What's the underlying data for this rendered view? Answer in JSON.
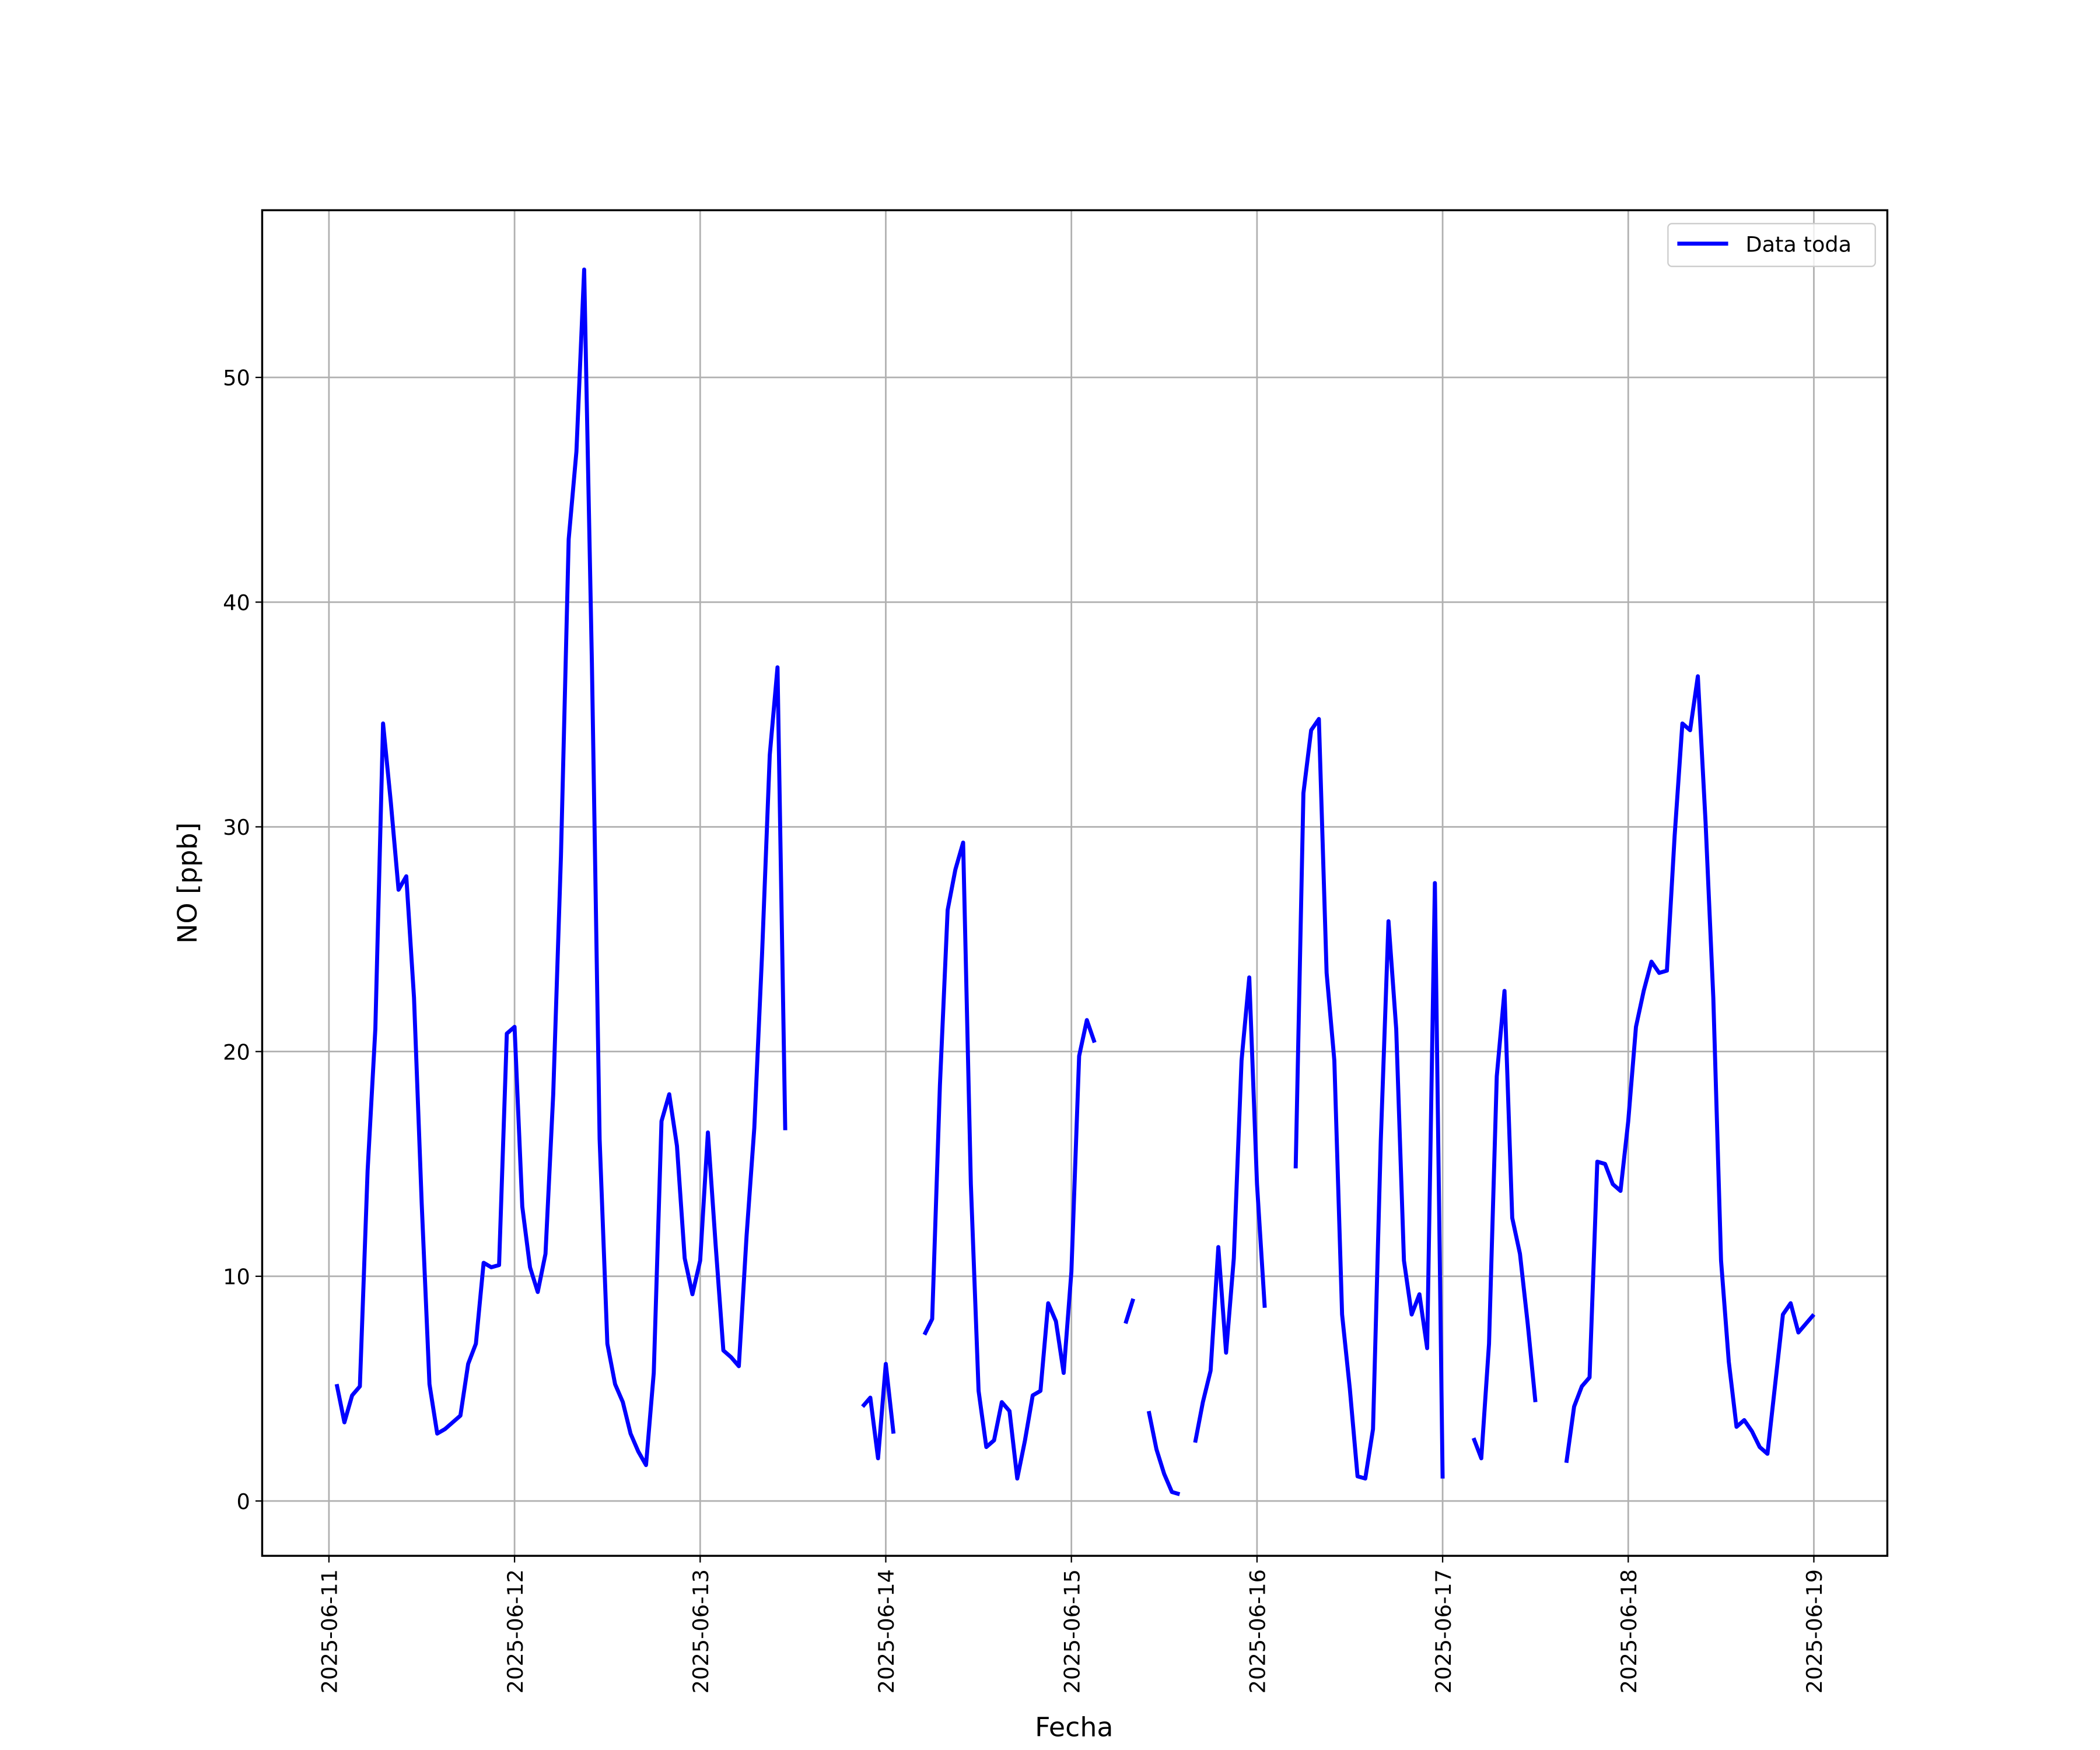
{
  "chart_data": {
    "type": "line",
    "xlabel": "Fecha",
    "ylabel": "NO [ppb]",
    "xlim": [
      "2025-06-10T15:22",
      "2025-06-19T09:30"
    ],
    "xticks": [
      "2025-06-11",
      "2025-06-12",
      "2025-06-13",
      "2025-06-14",
      "2025-06-15",
      "2025-06-16",
      "2025-06-17",
      "2025-06-18",
      "2025-06-19"
    ],
    "ylim": [
      -2.44,
      57.44
    ],
    "yticks": [
      0,
      10,
      20,
      30,
      40,
      50
    ],
    "grid": true,
    "legend": "upper right",
    "x": [
      "2025-06-11T01:00",
      "2025-06-11T02:00",
      "2025-06-11T03:00",
      "2025-06-11T04:00",
      "2025-06-11T05:00",
      "2025-06-11T06:00",
      "2025-06-11T07:00",
      "2025-06-11T08:00",
      "2025-06-11T09:00",
      "2025-06-11T10:00",
      "2025-06-11T11:00",
      "2025-06-11T12:00",
      "2025-06-11T13:00",
      "2025-06-11T14:00",
      "2025-06-11T15:00",
      "2025-06-11T16:00",
      "2025-06-11T17:00",
      "2025-06-11T18:00",
      "2025-06-11T19:00",
      "2025-06-11T20:00",
      "2025-06-11T21:00",
      "2025-06-11T22:00",
      "2025-06-11T23:00",
      "2025-06-12T00:00",
      "2025-06-12T01:00",
      "2025-06-12T02:00",
      "2025-06-12T03:00",
      "2025-06-12T04:00",
      "2025-06-12T05:00",
      "2025-06-12T06:00",
      "2025-06-12T07:00",
      "2025-06-12T08:00",
      "2025-06-12T09:00",
      "2025-06-12T10:00",
      "2025-06-12T11:00",
      "2025-06-12T12:00",
      "2025-06-12T13:00",
      "2025-06-12T14:00",
      "2025-06-12T15:00",
      "2025-06-12T16:00",
      "2025-06-12T17:00",
      "2025-06-12T18:00",
      "2025-06-12T19:00",
      "2025-06-12T20:00",
      "2025-06-12T21:00",
      "2025-06-12T22:00",
      "2025-06-12T23:00",
      "2025-06-13T00:00",
      "2025-06-13T01:00",
      "2025-06-13T02:00",
      "2025-06-13T03:00",
      "2025-06-13T04:00",
      "2025-06-13T05:00",
      "2025-06-13T06:00",
      "2025-06-13T07:00",
      "2025-06-13T08:00",
      "2025-06-13T09:00",
      "2025-06-13T10:00",
      "2025-06-13T11:00",
      "2025-06-13T12:00",
      "2025-06-13T21:00",
      "2025-06-13T22:00",
      "2025-06-13T23:00",
      "2025-06-14T00:00",
      "2025-06-14T01:00",
      "2025-06-14T02:00",
      "2025-06-14T05:00",
      "2025-06-14T06:00",
      "2025-06-14T07:00",
      "2025-06-14T08:00",
      "2025-06-14T09:00",
      "2025-06-14T10:00",
      "2025-06-14T11:00",
      "2025-06-14T12:00",
      "2025-06-14T13:00",
      "2025-06-14T14:00",
      "2025-06-14T15:00",
      "2025-06-14T16:00",
      "2025-06-14T17:00",
      "2025-06-14T18:00",
      "2025-06-14T19:00",
      "2025-06-14T20:00",
      "2025-06-14T21:00",
      "2025-06-14T22:00",
      "2025-06-14T23:00",
      "2025-06-15T00:00",
      "2025-06-15T01:00",
      "2025-06-15T02:00",
      "2025-06-15T03:00",
      "2025-06-15T04:00",
      "2025-06-15T07:00",
      "2025-06-15T08:00",
      "2025-06-15T09:00",
      "2025-06-15T10:00",
      "2025-06-15T11:00",
      "2025-06-15T12:00",
      "2025-06-15T13:00",
      "2025-06-15T14:00",
      "2025-06-15T15:00",
      "2025-06-15T16:00",
      "2025-06-15T17:00",
      "2025-06-15T18:00",
      "2025-06-15T19:00",
      "2025-06-15T20:00",
      "2025-06-15T21:00",
      "2025-06-15T22:00",
      "2025-06-15T23:00",
      "2025-06-16T00:00",
      "2025-06-16T01:00",
      "2025-06-16T02:00",
      "2025-06-16T05:00",
      "2025-06-16T06:00",
      "2025-06-16T07:00",
      "2025-06-16T08:00",
      "2025-06-16T09:00",
      "2025-06-16T10:00",
      "2025-06-16T11:00",
      "2025-06-16T12:00",
      "2025-06-16T13:00",
      "2025-06-16T14:00",
      "2025-06-16T15:00",
      "2025-06-16T16:00",
      "2025-06-16T17:00",
      "2025-06-16T18:00",
      "2025-06-16T19:00",
      "2025-06-16T20:00",
      "2025-06-16T21:00",
      "2025-06-16T22:00",
      "2025-06-16T23:00",
      "2025-06-17T00:00",
      "2025-06-17T01:00",
      "2025-06-17T04:00",
      "2025-06-17T05:00",
      "2025-06-17T06:00",
      "2025-06-17T07:00",
      "2025-06-17T08:00",
      "2025-06-17T09:00",
      "2025-06-17T10:00",
      "2025-06-17T11:00",
      "2025-06-17T12:00",
      "2025-06-17T13:00",
      "2025-06-17T16:00",
      "2025-06-17T17:00",
      "2025-06-17T18:00",
      "2025-06-17T19:00",
      "2025-06-17T20:00",
      "2025-06-17T21:00",
      "2025-06-17T22:00",
      "2025-06-17T23:00",
      "2025-06-18T00:00",
      "2025-06-18T01:00",
      "2025-06-18T02:00",
      "2025-06-18T03:00",
      "2025-06-18T04:00",
      "2025-06-18T05:00",
      "2025-06-18T06:00",
      "2025-06-18T07:00",
      "2025-06-18T08:00",
      "2025-06-18T09:00",
      "2025-06-18T10:00",
      "2025-06-18T11:00",
      "2025-06-18T12:00",
      "2025-06-18T13:00",
      "2025-06-18T14:00",
      "2025-06-18T15:00",
      "2025-06-18T16:00",
      "2025-06-18T17:00",
      "2025-06-18T18:00",
      "2025-06-18T19:00",
      "2025-06-18T20:00",
      "2025-06-18T21:00",
      "2025-06-18T22:00",
      "2025-06-18T23:00",
      "2025-06-19T00:00"
    ],
    "series": [
      {
        "name": "Data toda",
        "color": "#0000ff",
        "values": [
          5.2,
          3.5,
          4.7,
          5.1,
          14.7,
          21.0,
          34.6,
          31.1,
          27.2,
          27.8,
          22.4,
          13.2,
          5.2,
          3.0,
          3.2,
          3.5,
          3.8,
          6.1,
          7.0,
          10.6,
          10.4,
          10.5,
          20.8,
          21.1,
          13.1,
          10.4,
          9.3,
          11.0,
          18.1,
          28.7,
          42.8,
          46.7,
          54.8,
          37.3,
          16.1,
          7.0,
          5.2,
          4.4,
          3.0,
          2.2,
          1.6,
          5.7,
          16.9,
          18.1,
          15.8,
          10.8,
          9.2,
          10.7,
          16.4,
          11.4,
          6.7,
          6.4,
          6.0,
          11.8,
          16.6,
          24.3,
          33.2,
          37.1,
          16.5,
          null,
          4.2,
          4.6,
          1.9,
          6.1,
          3.0,
          null,
          7.4,
          8.1,
          18.5,
          26.3,
          28.1,
          29.3,
          14.1,
          4.9,
          2.4,
          2.7,
          4.4,
          4.0,
          1.0,
          2.7,
          4.7,
          4.9,
          8.8,
          8.0,
          5.7,
          10.2,
          19.8,
          21.4,
          20.4,
          null,
          7.9,
          9.0,
          null,
          4.0,
          2.3,
          1.2,
          0.4,
          0.3,
          null,
          2.6,
          4.4,
          5.8,
          11.3,
          6.6,
          10.8,
          19.6,
          23.3,
          14.1,
          8.6,
          null,
          14.8,
          31.5,
          34.3,
          34.8,
          23.5,
          19.6,
          8.3,
          5.0,
          1.1,
          1.0,
          3.2,
          16.0,
          25.8,
          21.0,
          10.7,
          8.3,
          9.2,
          6.8,
          27.5,
          1.0,
          null,
          2.8,
          1.9,
          7.0,
          18.9,
          22.7,
          12.6,
          11.0,
          7.9,
          4.4,
          null,
          1.7,
          4.2,
          5.1,
          5.5,
          15.1,
          15.0,
          14.1,
          13.8,
          16.9,
          21.1,
          22.7,
          24.0,
          23.5,
          23.6,
          29.6,
          34.6,
          34.3,
          36.7,
          30.2,
          22.4,
          10.7,
          6.2,
          3.3,
          3.6,
          3.1,
          2.4,
          2.1,
          5.2,
          8.3,
          8.8,
          7.5,
          7.9,
          8.3
        ]
      }
    ]
  }
}
